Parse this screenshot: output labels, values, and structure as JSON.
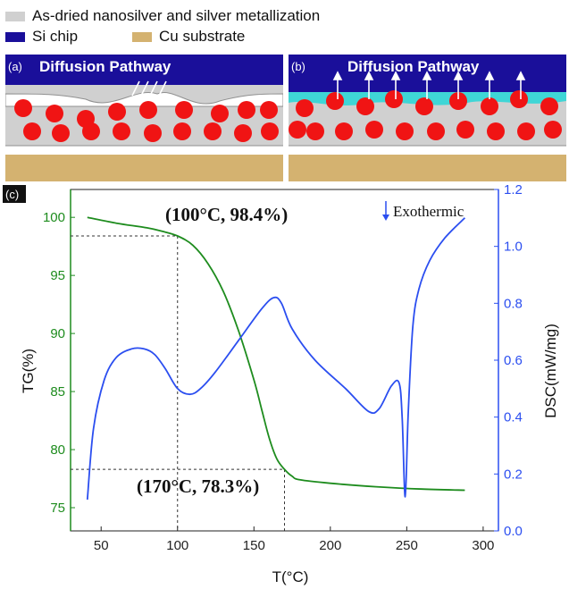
{
  "legend": {
    "items": [
      {
        "label": "As-dried nanosilver and silver metallization",
        "color": "#d0d0d0"
      },
      {
        "label": "Si chip",
        "color": "#1a0f9a"
      },
      {
        "label": "Cu substrate",
        "color": "#d4b270"
      }
    ]
  },
  "panel_a": {
    "tag": "(a)",
    "title": "Diffusion Pathway"
  },
  "panel_b": {
    "tag": "(b)",
    "title": "Diffusion Pathway"
  },
  "colors": {
    "chip": "#1a0f9a",
    "paste": "#d0d0d0",
    "particle": "#f01414",
    "cu": "#d4b270",
    "tg": "#1e8c1e",
    "dsc": "#2b4ef0",
    "gap_fill": "#3fd6d6"
  },
  "chart_data": {
    "type": "line",
    "panel_tag": "(c)",
    "xlabel": "T(°C)",
    "ylabel_left": "TG(%)",
    "ylabel_right": "DSC(mW/mg)",
    "xlim": [
      30,
      310
    ],
    "ylim_left": [
      73,
      102.4
    ],
    "ylim_right": [
      0.0,
      1.2
    ],
    "xticks": [
      50,
      100,
      150,
      200,
      250,
      300
    ],
    "yticks_left": [
      75,
      80,
      85,
      90,
      95,
      100
    ],
    "yticks_right": [
      0.0,
      0.2,
      0.4,
      0.6,
      0.8,
      1.0,
      1.2
    ],
    "grid": false,
    "series": [
      {
        "name": "TG",
        "axis": "left",
        "color": "#1e8c1e",
        "x": [
          41,
          60,
          80,
          90,
          100,
          110,
          120,
          130,
          140,
          150,
          155,
          160,
          165,
          170,
          175,
          180,
          200,
          230,
          260,
          288
        ],
        "y": [
          100.0,
          99.5,
          99.1,
          98.8,
          98.4,
          97.6,
          96.0,
          93.6,
          90.2,
          86.0,
          83.5,
          81.0,
          79.2,
          78.3,
          77.7,
          77.4,
          77.1,
          76.8,
          76.6,
          76.5
        ]
      },
      {
        "name": "DSC",
        "axis": "right",
        "color": "#2b4ef0",
        "x": [
          41,
          45,
          52,
          60,
          70,
          78,
          85,
          92,
          100,
          108,
          115,
          125,
          140,
          155,
          163,
          168,
          175,
          190,
          210,
          225,
          232,
          240,
          245,
          247,
          249,
          251,
          254,
          258,
          265,
          275,
          288
        ],
        "y": [
          0.11,
          0.36,
          0.53,
          0.61,
          0.64,
          0.64,
          0.62,
          0.57,
          0.5,
          0.48,
          0.5,
          0.56,
          0.67,
          0.78,
          0.82,
          0.8,
          0.71,
          0.6,
          0.5,
          0.42,
          0.43,
          0.51,
          0.52,
          0.4,
          0.12,
          0.42,
          0.72,
          0.85,
          0.95,
          1.03,
          1.1
        ]
      }
    ],
    "annotations": [
      {
        "text": "(100°C, 98.4%)",
        "point": [
          100,
          98.4
        ]
      },
      {
        "text": "(170°C, 78.3%)",
        "point": [
          170,
          78.3
        ]
      },
      {
        "text": "Exothermic"
      }
    ]
  }
}
